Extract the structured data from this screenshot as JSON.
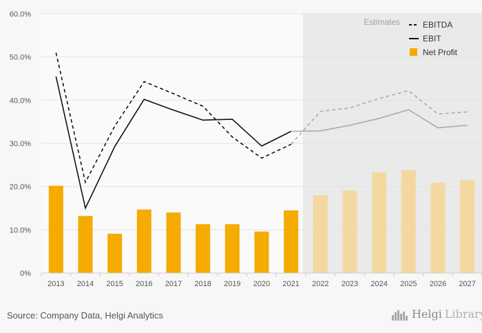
{
  "chart_data": {
    "type": "bar+line",
    "categories": [
      "2013",
      "2014",
      "2015",
      "2016",
      "2017",
      "2018",
      "2019",
      "2020",
      "2021",
      "2022",
      "2023",
      "2024",
      "2025",
      "2026",
      "2027"
    ],
    "estimates_start_index": 9,
    "estimates_label": "Estimates",
    "y_ticks": [
      "0%",
      "10.0%",
      "20.0%",
      "30.0%",
      "40.0%",
      "50.0%",
      "60.0%"
    ],
    "ylim": [
      0,
      60
    ],
    "grid": true,
    "legend_position": "top-right",
    "series": [
      {
        "name": "EBITDA",
        "type": "line",
        "style": "dashed",
        "values": [
          51.0,
          21.0,
          34.0,
          44.3,
          41.5,
          38.6,
          31.5,
          26.6,
          29.8,
          37.4,
          38.2,
          40.4,
          42.2,
          36.8,
          37.3
        ]
      },
      {
        "name": "EBIT",
        "type": "line",
        "style": "solid",
        "values": [
          45.5,
          15.0,
          29.3,
          40.2,
          37.7,
          35.4,
          35.6,
          29.4,
          32.8,
          32.9,
          34.2,
          35.8,
          37.8,
          33.6,
          34.2
        ]
      },
      {
        "name": "Net Profit",
        "type": "bar",
        "values": [
          20.2,
          13.2,
          9.1,
          14.7,
          14.0,
          11.3,
          11.3,
          9.6,
          14.5,
          18.0,
          19.1,
          23.3,
          23.8,
          20.9,
          21.5
        ]
      }
    ],
    "colors": {
      "bar": "#f5ab00",
      "bar_estimate": "#f3d9a0",
      "line": "#111111",
      "line_estimate": "#aaaaaa",
      "estimate_band": "#eaeaea"
    }
  },
  "footer": {
    "source": "Source: Company Data, Helgi Analytics",
    "brand_strong": "Helgi",
    "brand_light": "Library",
    "brand_icon": "city-skyline-icon"
  }
}
